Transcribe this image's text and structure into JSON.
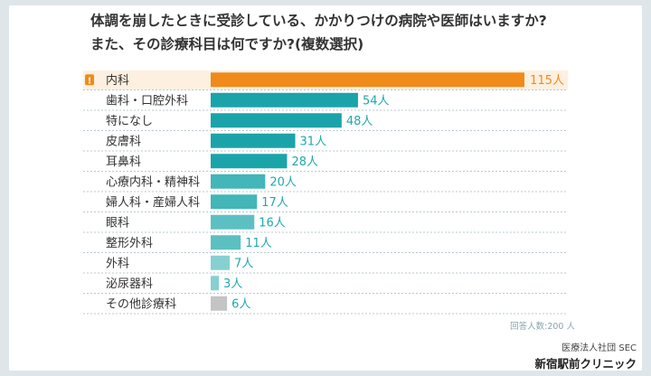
{
  "question": {
    "line1": "体調を崩したときに受診している、かかりつけの病院や医師はいますか?",
    "line2": "また、その診療科目は何ですか?(複数選択)"
  },
  "chart_data": {
    "type": "bar",
    "orientation": "horizontal",
    "categories": [
      "内科",
      "歯科・口腔外科",
      "特になし",
      "皮膚科",
      "耳鼻科",
      "心療内科・精神科",
      "婦人科・産婦人科",
      "眼科",
      "整形外科",
      "外科",
      "泌尿器科",
      "その他診療科"
    ],
    "values": [
      115,
      54,
      48,
      31,
      28,
      20,
      17,
      16,
      11,
      7,
      3,
      6
    ],
    "value_labels": [
      "115人",
      "54人",
      "48人",
      "31人",
      "28人",
      "20人",
      "17人",
      "16人",
      "11人",
      "7人",
      "3人",
      "6人"
    ],
    "xlim": [
      0,
      115
    ],
    "grid": false,
    "highlight_index": 0,
    "highlight_badge": "!",
    "colors": {
      "highlight": "#f08a1b",
      "highlight_row_bg": "#fdf0e0",
      "highlight_text": "#ffffff",
      "shade_1": "#1aa4a9",
      "shade_2": "#42b6b8",
      "shade_3": "#5cc0c2",
      "shade_4": "#86d0d2",
      "other": "#c4c4c4",
      "value_text": "#20a9ae",
      "separator": "#b9c9d0"
    },
    "bar_colors": [
      "highlight",
      "shade_1",
      "shade_1",
      "shade_1",
      "shade_1",
      "shade_2",
      "shade_2",
      "shade_3",
      "shade_3",
      "shade_4",
      "shade_4",
      "other"
    ]
  },
  "footer": {
    "sample": "回答人数:200 人",
    "org": "医療法人社団 SEC",
    "clinic": "新宿駅前クリニック"
  }
}
